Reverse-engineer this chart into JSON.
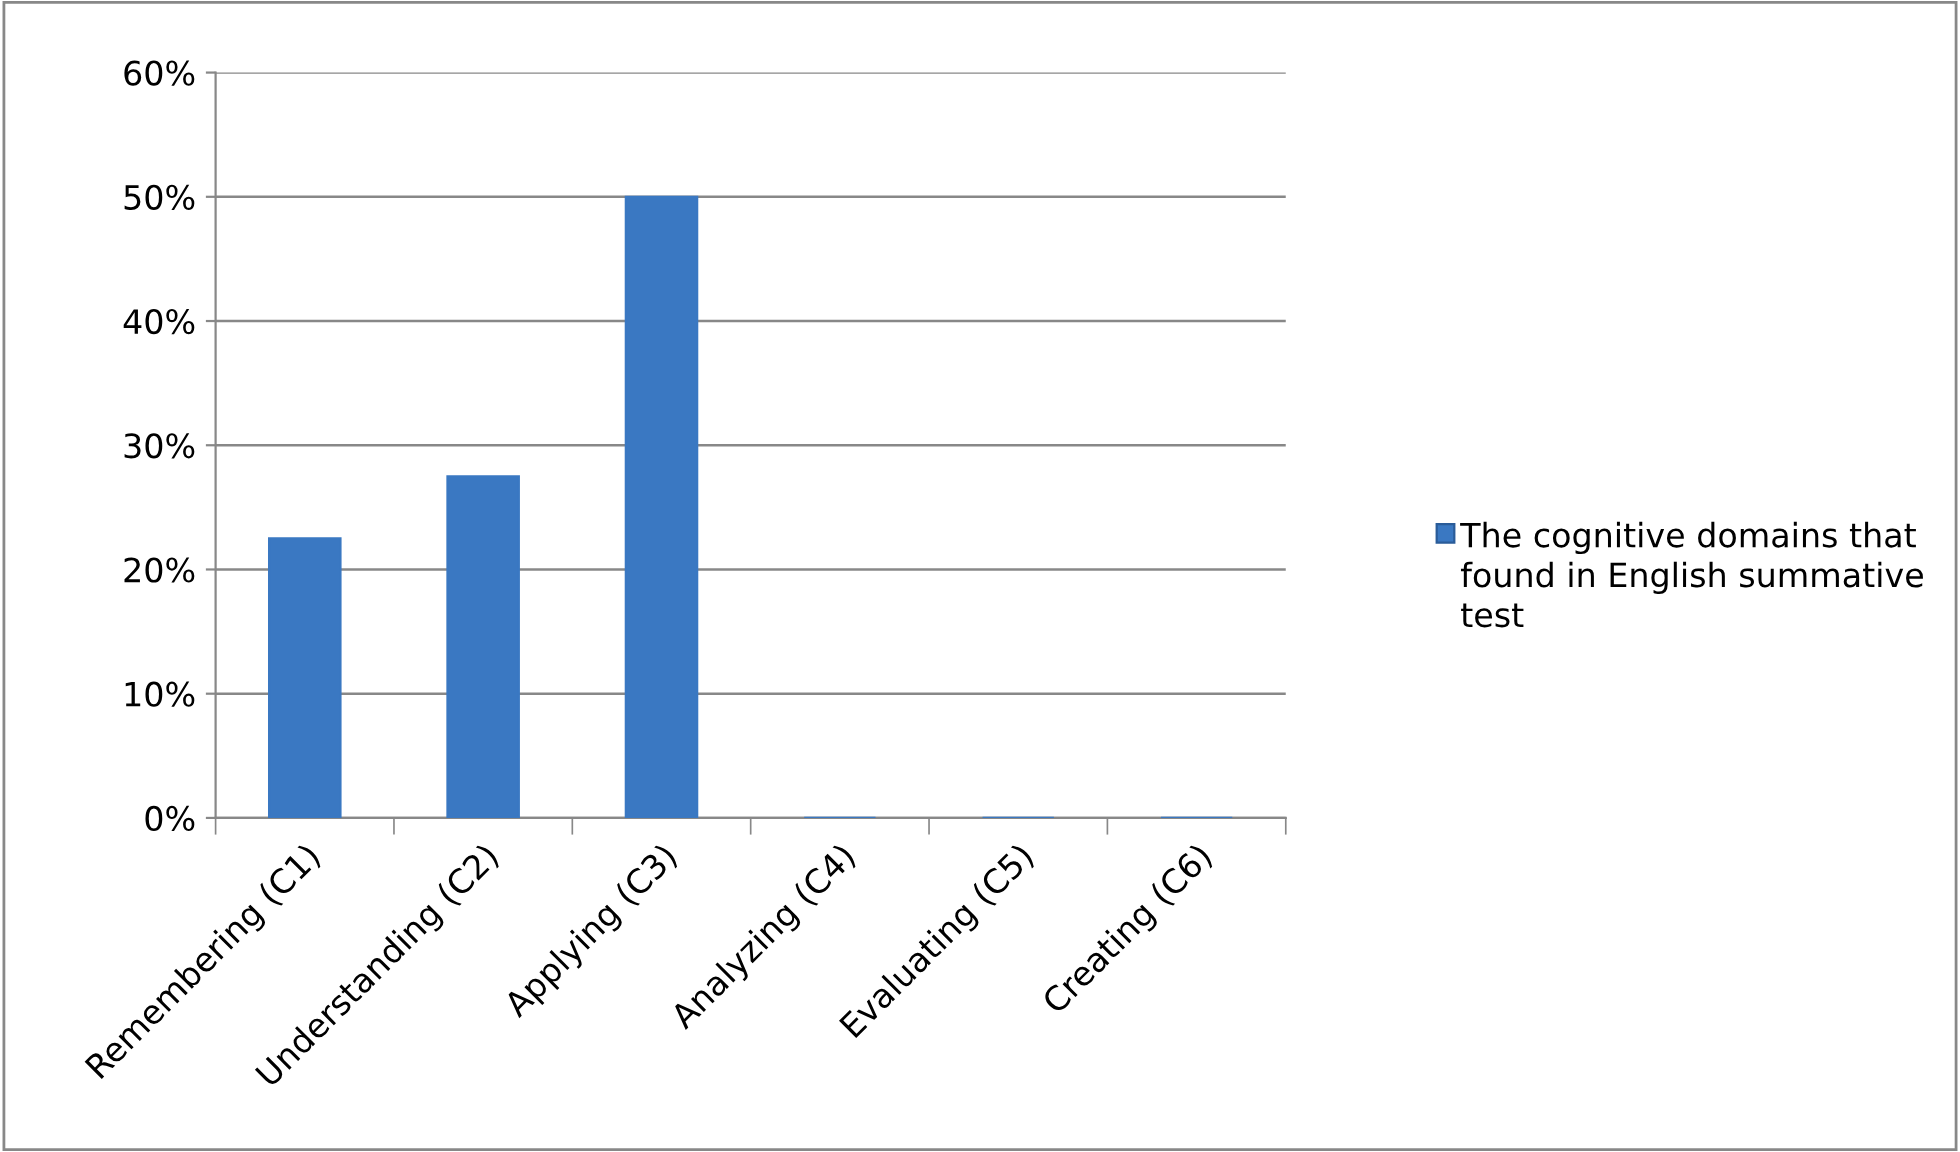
{
  "chart_data": {
    "type": "bar",
    "categories": [
      "Remembering (C1)",
      "Understanding (C2)",
      "Applying (C3)",
      "Analyzing (C4)",
      "Evaluating (C5)",
      "Creating (C6)"
    ],
    "series": [
      {
        "name": "The cognitive domains that found in English summative test",
        "color": "#3a78c2",
        "values": [
          22.5,
          27.5,
          50,
          0,
          0,
          0
        ]
      }
    ],
    "ylim": [
      0,
      60
    ],
    "yticks": [
      {
        "value": 0,
        "label": "0%"
      },
      {
        "value": 10,
        "label": "10%"
      },
      {
        "value": 20,
        "label": "20%"
      },
      {
        "value": 30,
        "label": "30%"
      },
      {
        "value": 40,
        "label": "40%"
      },
      {
        "value": 50,
        "label": "50%"
      },
      {
        "value": 60,
        "label": "60%"
      }
    ],
    "grid": "y",
    "legend": "right"
  }
}
